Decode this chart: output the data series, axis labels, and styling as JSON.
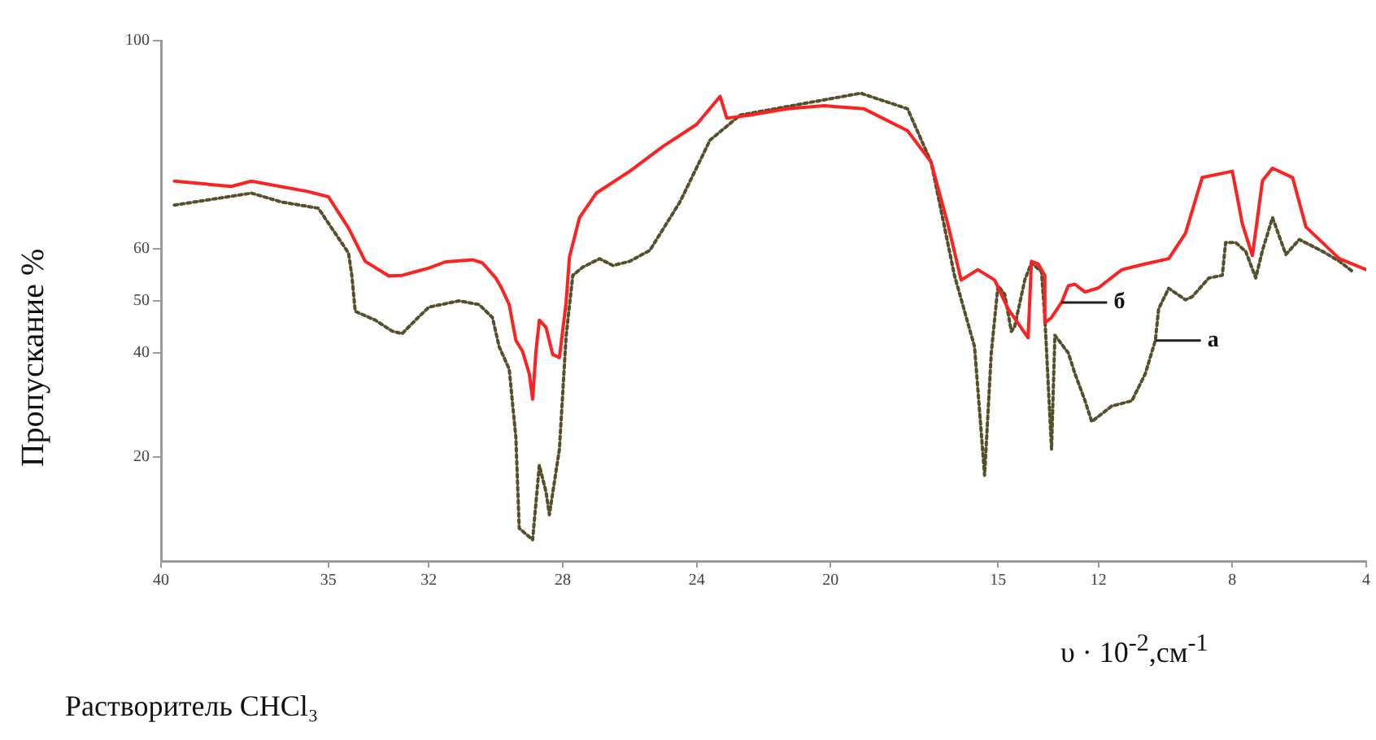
{
  "chart_data": {
    "type": "line",
    "xlabel": "υ · 10$^{-2}$,см$^{-1}$",
    "ylabel": "Пропускание %",
    "xlim": [
      40,
      4
    ],
    "xticks": [
      40,
      35,
      32,
      28,
      24,
      20,
      15,
      12,
      8,
      4
    ],
    "ylim": [
      0,
      100
    ],
    "yticks": [
      20,
      40,
      50,
      60,
      100
    ],
    "annotations": [
      {
        "text": "б",
        "x": 13.1,
        "y": 49.7
      },
      {
        "text": "а",
        "x": 10.3,
        "y": 42.4
      },
      "Растворитель CHCl₃"
    ],
    "series": [
      {
        "color": "#ff2020",
        "line_style": "solid",
        "x": [
          39.6,
          37.9,
          37.3,
          35.6,
          35.0,
          34.4,
          33.9,
          33.2,
          32.8,
          32.0,
          31.5,
          30.7,
          30.4,
          30.0,
          29.8,
          29.6,
          29.4,
          29.2,
          29.0,
          28.9,
          28.8,
          28.7,
          28.5,
          28.3,
          28.1,
          27.9,
          27.8,
          27.5,
          27.0,
          26.0,
          25.0,
          24.0,
          23.3,
          23.1,
          22.4,
          21.3,
          20.2,
          19.0,
          17.7,
          17.0,
          16.5,
          16.1,
          15.6,
          15.1,
          14.7,
          14.1,
          14.0,
          13.8,
          13.6,
          13.6,
          13.4,
          13.1,
          12.9,
          12.7,
          12.4,
          12.0,
          11.3,
          10.6,
          9.9,
          9.4,
          8.9,
          8.0,
          7.7,
          7.4,
          7.1,
          6.8,
          6.2,
          5.8,
          4.8,
          4.0
        ],
        "values": [
          73,
          72,
          73,
          71,
          70,
          64,
          57.6,
          54.8,
          54.9,
          56.3,
          57.5,
          57.9,
          57.3,
          54.4,
          52.1,
          49.3,
          42.4,
          40.3,
          36,
          31.1,
          40.3,
          46.3,
          44.9,
          39.7,
          39.1,
          49.7,
          58.4,
          66,
          70.7,
          74.9,
          79.7,
          83.9,
          89.3,
          85.1,
          85.7,
          86.9,
          87.5,
          86.9,
          82.7,
          76.7,
          64.8,
          54,
          56,
          54,
          48.5,
          42.9,
          57.6,
          57.1,
          54.9,
          45.8,
          46.8,
          49.7,
          52.9,
          53.2,
          51.7,
          52.5,
          56,
          57.1,
          58.1,
          63,
          73.7,
          74.9,
          64.8,
          58.7,
          73.1,
          75.5,
          73.7,
          64.2,
          58.1,
          56
        ]
      },
      {
        "color": "#55502a",
        "line_style": "dotted",
        "x": [
          39.6,
          37.3,
          36.4,
          35.3,
          34.4,
          34.3,
          34.2,
          33.6,
          33.1,
          32.8,
          32.4,
          32.0,
          31.1,
          30.5,
          30.1,
          29.9,
          29.6,
          29.4,
          29.3,
          28.9,
          28.7,
          28.5,
          28.4,
          28.1,
          27.9,
          27.7,
          27.4,
          26.9,
          26.5,
          26.0,
          25.4,
          24.5,
          23.6,
          22.7,
          19.1,
          17.7,
          17.0,
          16.3,
          15.7,
          15.4,
          15.2,
          15.0,
          14.8,
          14.6,
          14.5,
          14.2,
          14.0,
          13.7,
          13.6,
          13.4,
          13.3,
          12.9,
          12.7,
          12.4,
          12.2,
          11.6,
          11.0,
          10.6,
          10.3,
          10.2,
          9.9,
          9.4,
          9.2,
          8.7,
          8.3,
          8.2,
          7.9,
          7.6,
          7.3,
          7.1,
          6.8,
          6.4,
          6.0,
          5.3,
          4.8,
          4.4
        ],
        "values": [
          68.4,
          70.7,
          69,
          67.8,
          59.2,
          54.9,
          48,
          46.3,
          44.2,
          43.7,
          46.3,
          48.8,
          50,
          49.3,
          46.8,
          41.2,
          36.9,
          23.7,
          6.3,
          4.1,
          18.4,
          13.3,
          8.9,
          21.5,
          43.2,
          54.9,
          56.5,
          58.1,
          56.8,
          57.6,
          59.7,
          69,
          80.9,
          85.7,
          89.9,
          86.9,
          76.7,
          54.9,
          41.2,
          16.5,
          40,
          52.9,
          51.3,
          44.1,
          45.1,
          54,
          57.3,
          55.6,
          46.8,
          21.5,
          43.4,
          40,
          36,
          30.8,
          26.8,
          29.8,
          30.8,
          36,
          42.4,
          48.5,
          52.4,
          50.2,
          50.8,
          54.4,
          54.9,
          61.2,
          61.2,
          59.5,
          54.4,
          59.7,
          66,
          58.9,
          61.8,
          59.5,
          57.6,
          55.6
        ]
      }
    ]
  }
}
